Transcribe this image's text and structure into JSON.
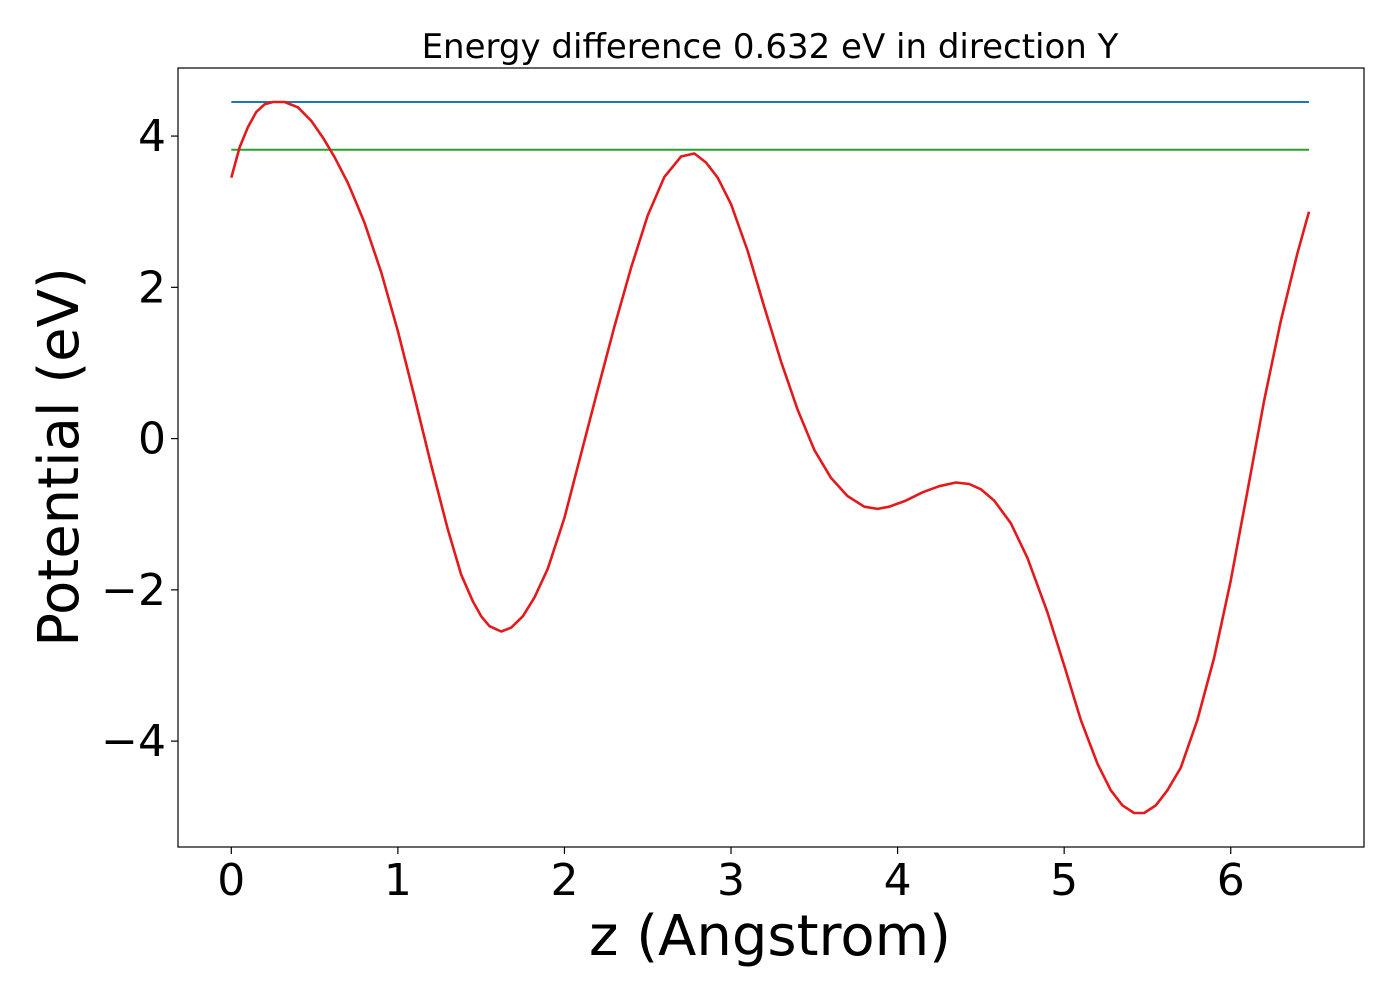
{
  "chart_data": {
    "type": "line",
    "title": "Energy difference 0.632 eV in direction Y",
    "xlabel": "z (Angstrom)",
    "ylabel": "Potential (eV)",
    "xlim": [
      -0.32,
      6.8
    ],
    "ylim": [
      -5.4,
      4.9
    ],
    "xticks": [
      0,
      1,
      2,
      3,
      4,
      5,
      6
    ],
    "xtick_labels": [
      "0",
      "1",
      "2",
      "3",
      "4",
      "5",
      "6"
    ],
    "yticks": [
      -4,
      -2,
      0,
      2,
      4
    ],
    "ytick_labels": [
      "−4",
      "−2",
      "0",
      "2",
      "4"
    ],
    "grid": false,
    "series": [
      {
        "color": "#1f77b4",
        "style": "horizontal",
        "x": [
          0,
          6.47
        ],
        "y": [
          4.45,
          4.45
        ]
      },
      {
        "color": "#2ca02c",
        "style": "horizontal",
        "x": [
          0,
          6.47
        ],
        "y": [
          3.82,
          3.82
        ]
      },
      {
        "color": "#e31a1c",
        "style": "curve",
        "x": [
          0,
          0.05,
          0.1,
          0.15,
          0.2,
          0.25,
          0.32,
          0.4,
          0.48,
          0.55,
          0.62,
          0.7,
          0.75,
          0.8,
          0.9,
          1.0,
          1.1,
          1.2,
          1.3,
          1.38,
          1.45,
          1.5,
          1.55,
          1.62,
          1.68,
          1.75,
          1.82,
          1.9,
          2.0,
          2.1,
          2.2,
          2.3,
          2.4,
          2.5,
          2.6,
          2.7,
          2.78,
          2.85,
          2.92,
          3.0,
          3.1,
          3.2,
          3.3,
          3.4,
          3.5,
          3.6,
          3.7,
          3.8,
          3.88,
          3.95,
          4.05,
          4.15,
          4.25,
          4.35,
          4.43,
          4.5,
          4.58,
          4.68,
          4.78,
          4.9,
          5.0,
          5.1,
          5.2,
          5.28,
          5.35,
          5.42,
          5.48,
          5.55,
          5.62,
          5.7,
          5.8,
          5.9,
          6.0,
          6.1,
          6.2,
          6.3,
          6.4,
          6.47
        ],
        "y": [
          3.45,
          3.85,
          4.12,
          4.32,
          4.42,
          4.45,
          4.45,
          4.38,
          4.2,
          3.98,
          3.72,
          3.38,
          3.12,
          2.85,
          2.2,
          1.42,
          0.55,
          -0.35,
          -1.2,
          -1.8,
          -2.15,
          -2.35,
          -2.48,
          -2.55,
          -2.5,
          -2.35,
          -2.1,
          -1.72,
          -1.05,
          -0.2,
          0.65,
          1.48,
          2.26,
          2.95,
          3.46,
          3.73,
          3.77,
          3.65,
          3.45,
          3.1,
          2.48,
          1.74,
          1.02,
          0.38,
          -0.15,
          -0.52,
          -0.76,
          -0.9,
          -0.93,
          -0.9,
          -0.82,
          -0.71,
          -0.63,
          -0.58,
          -0.6,
          -0.67,
          -0.82,
          -1.12,
          -1.58,
          -2.3,
          -3.0,
          -3.72,
          -4.3,
          -4.65,
          -4.85,
          -4.95,
          -4.95,
          -4.85,
          -4.65,
          -4.35,
          -3.72,
          -2.9,
          -1.88,
          -0.7,
          0.5,
          1.55,
          2.45,
          3.0
        ]
      }
    ]
  }
}
